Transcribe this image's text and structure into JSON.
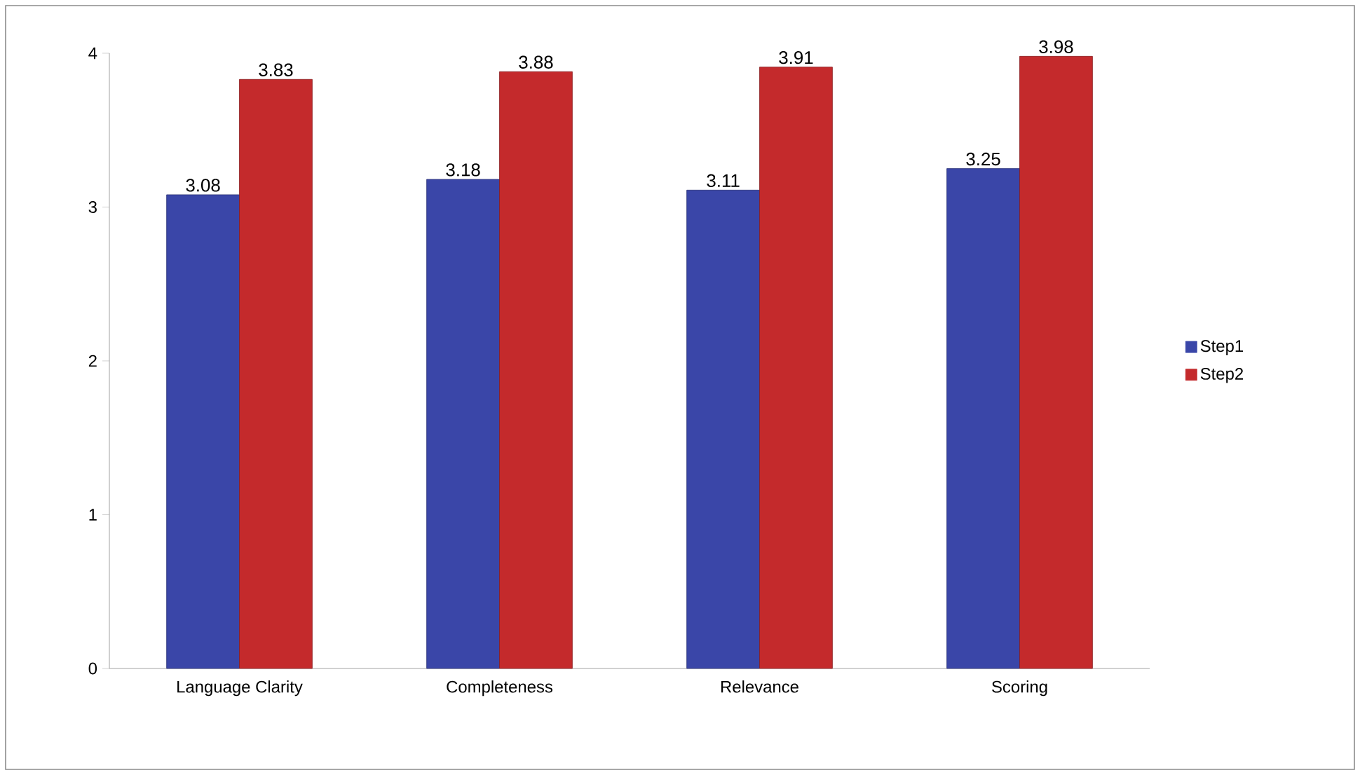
{
  "chart_data": {
    "type": "bar",
    "categories": [
      "Language Clarity",
      "Completeness",
      "Relevance",
      "Scoring"
    ],
    "series": [
      {
        "name": "Step1",
        "color": "#3a46a8",
        "values": [
          3.08,
          3.18,
          3.11,
          3.25
        ]
      },
      {
        "name": "Step2",
        "color": "#c42a2c",
        "values": [
          3.83,
          3.88,
          3.91,
          3.98
        ]
      }
    ],
    "ylim": [
      0,
      4
    ],
    "yticks": [
      0,
      1,
      2,
      3,
      4
    ],
    "data_labels": true,
    "legend": "right",
    "grid": false
  }
}
